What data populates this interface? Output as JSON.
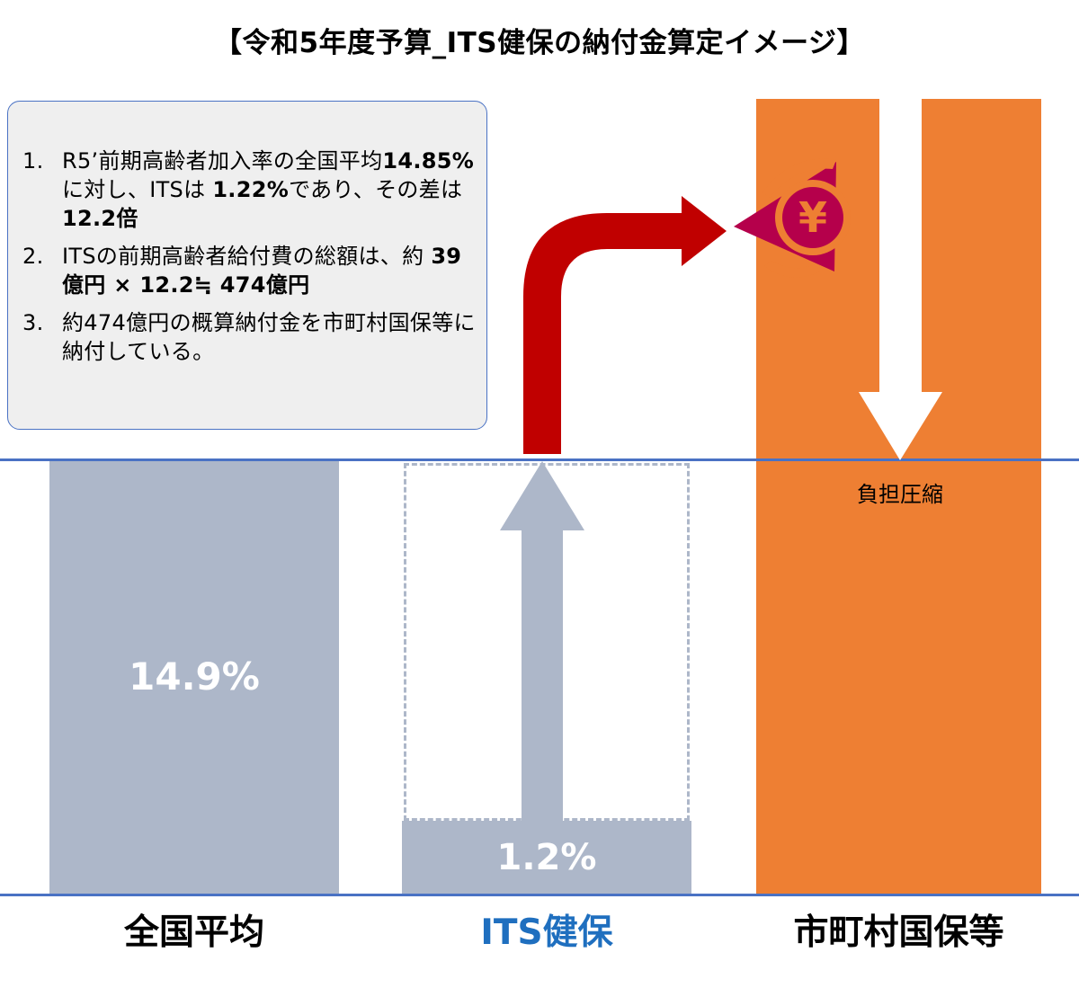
{
  "title": "【令和5年度予算_ITS健保の納付金算定イメージ】",
  "notes": [
    {
      "num": "1.",
      "parts": [
        {
          "t": "R5’前期高齢者加入率の全国平均",
          "b": false
        },
        {
          "t": "14.85%",
          "b": true
        },
        {
          "t": "に対し、ITSは ",
          "b": false
        },
        {
          "t": "1.22%",
          "b": true
        },
        {
          "t": "であり、その差は",
          "b": false
        },
        {
          "t": "12.2倍",
          "b": true
        }
      ]
    },
    {
      "num": "2.",
      "parts": [
        {
          "t": "ITSの前期高齢者給付費の総額は、約 ",
          "b": false
        },
        {
          "t": "39億円 × 12.2≒ 474億円",
          "b": true
        }
      ]
    },
    {
      "num": "3.",
      "parts": [
        {
          "t": "約474億円の概算納付金を市町村国保等に納付している。",
          "b": false
        }
      ]
    }
  ],
  "bars": {
    "national": {
      "label": "全国平均",
      "value_label": "14.9%",
      "value": 14.9,
      "color": "#adb7c9"
    },
    "its": {
      "label": "ITS健保",
      "value_label": "1.2%",
      "value": 1.2,
      "color": "#adb7c9",
      "label_color": "#1f6fbf"
    },
    "municipal": {
      "label": "市町村国保等",
      "color": "#ee7f33"
    }
  },
  "compression_label": "負担圧縮",
  "colors": {
    "line": "#4a72c4",
    "red_arrow": "#c00000",
    "coin_dark": "#b5004b",
    "coin_orange": "#ee7f33"
  },
  "icons": {
    "coin": "yen-coin-icon",
    "red_arrow": "curved-up-right-arrow-icon",
    "its_arrow": "up-arrow-icon",
    "muni_arrow": "down-arrow-icon"
  }
}
